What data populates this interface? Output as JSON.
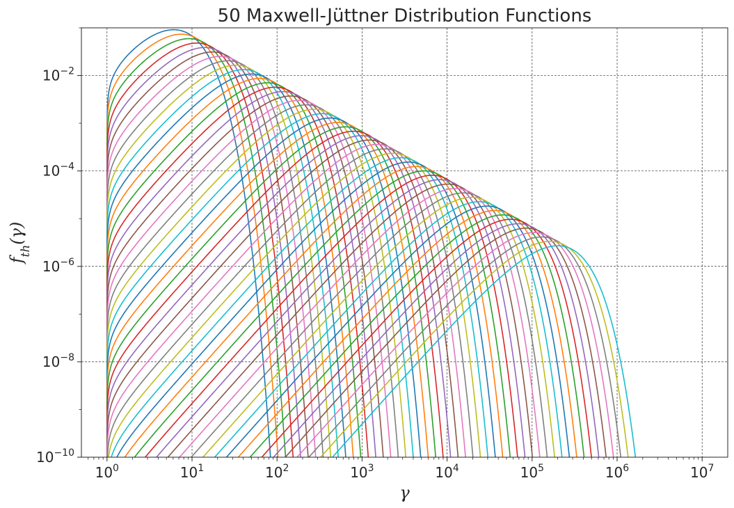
{
  "chart_data": {
    "type": "line",
    "title": "50 Maxwell-Jüttner Distribution Functions",
    "xlabel": "γ",
    "ylabel_main": "f",
    "ylabel_sub": "th",
    "ylabel_arg": "(γ)",
    "xscale": "log",
    "yscale": "log",
    "xlim": [
      0.5,
      20000000
    ],
    "ylim": [
      1e-10,
      0.1
    ],
    "grid": true,
    "legend": "none",
    "series_count": 50,
    "theta_range": [
      3,
      100000
    ],
    "gamma_max": 10000000.0,
    "x_ticks": [
      {
        "value": 1,
        "base": "10",
        "exp": "0"
      },
      {
        "value": 10,
        "base": "10",
        "exp": "1"
      },
      {
        "value": 100,
        "base": "10",
        "exp": "2"
      },
      {
        "value": 1000,
        "base": "10",
        "exp": "3"
      },
      {
        "value": 10000,
        "base": "10",
        "exp": "4"
      },
      {
        "value": 100000,
        "base": "10",
        "exp": "5"
      },
      {
        "value": 1000000,
        "base": "10",
        "exp": "6"
      },
      {
        "value": 10000000,
        "base": "10",
        "exp": "7"
      }
    ],
    "y_ticks": [
      {
        "value": 1e-10,
        "base": "10",
        "exp": "−10"
      },
      {
        "value": 1e-08,
        "base": "10",
        "exp": "−8"
      },
      {
        "value": 1e-06,
        "base": "10",
        "exp": "−6"
      },
      {
        "value": 0.0001,
        "base": "10",
        "exp": "−4"
      },
      {
        "value": 0.01,
        "base": "10",
        "exp": "−2"
      }
    ],
    "colors": [
      "#1f77b4",
      "#ff7f0e",
      "#2ca02c",
      "#d62728",
      "#9467bd",
      "#8c564b",
      "#e377c2",
      "#7f7f7f",
      "#bcbd22",
      "#17becf"
    ]
  }
}
